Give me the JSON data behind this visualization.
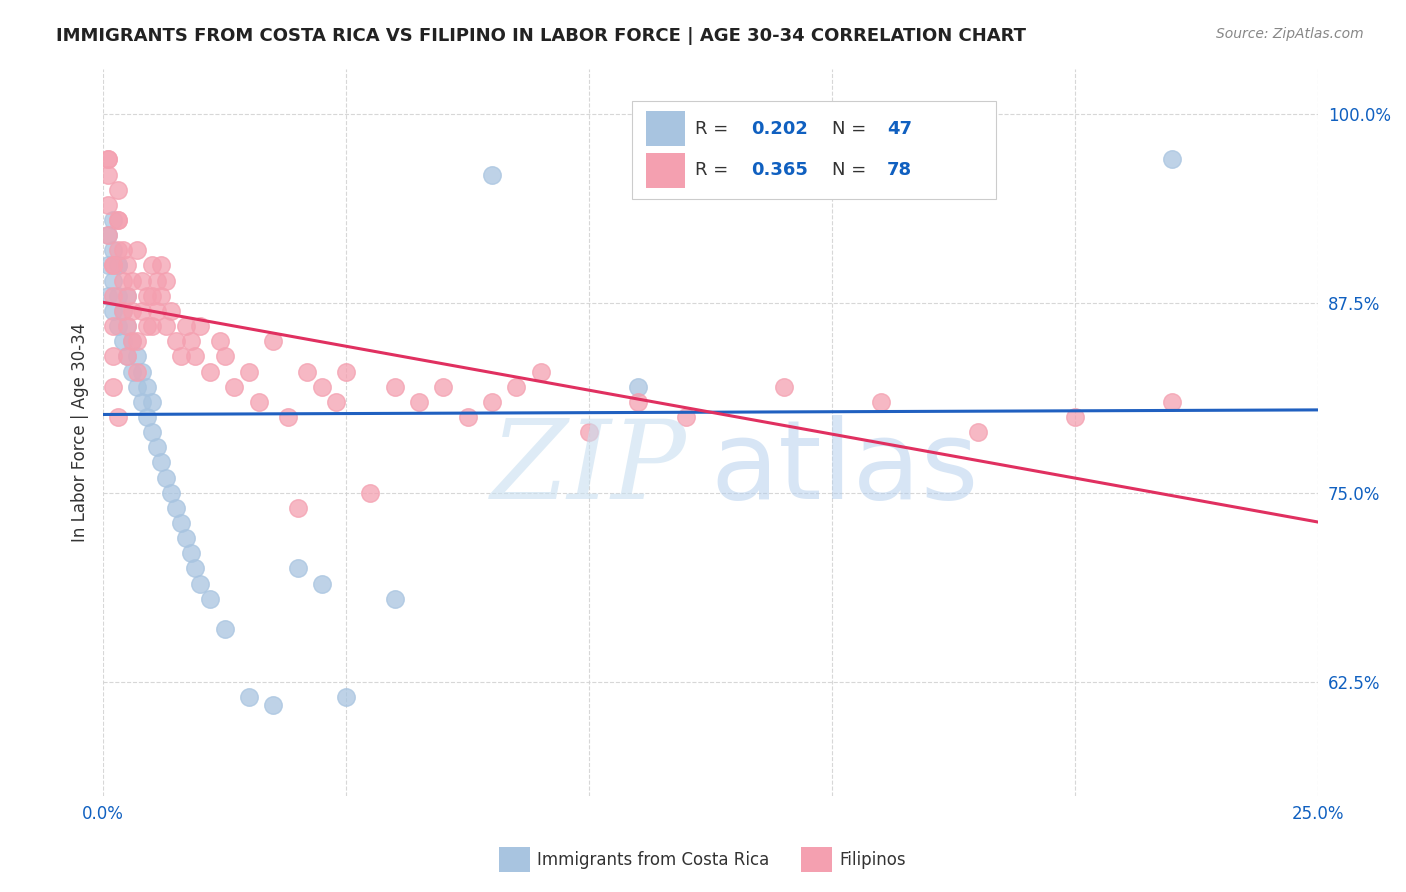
{
  "title": "IMMIGRANTS FROM COSTA RICA VS FILIPINO IN LABOR FORCE | AGE 30-34 CORRELATION CHART",
  "source": "Source: ZipAtlas.com",
  "ylabel": "In Labor Force | Age 30-34",
  "xlim": [
    0.0,
    0.25
  ],
  "ylim": [
    0.55,
    1.03
  ],
  "yticks": [
    0.625,
    0.75,
    0.875,
    1.0
  ],
  "yticklabels": [
    "62.5%",
    "75.0%",
    "87.5%",
    "100.0%"
  ],
  "costa_rica_R": 0.202,
  "costa_rica_N": 47,
  "filipino_R": 0.365,
  "filipino_N": 78,
  "blue_color": "#a8c4e0",
  "pink_color": "#f4a0b0",
  "blue_line_color": "#2060c0",
  "pink_line_color": "#e03060",
  "legend_R_color": "#1060c0",
  "costa_rica_x": [
    0.001,
    0.001,
    0.002,
    0.002,
    0.002,
    0.003,
    0.003,
    0.003,
    0.004,
    0.004,
    0.005,
    0.005,
    0.006,
    0.006,
    0.007,
    0.007,
    0.008,
    0.008,
    0.009,
    0.009,
    0.01,
    0.01,
    0.011,
    0.012,
    0.013,
    0.014,
    0.015,
    0.016,
    0.017,
    0.018,
    0.019,
    0.02,
    0.022,
    0.025,
    0.03,
    0.035,
    0.04,
    0.045,
    0.05,
    0.06,
    0.08,
    0.11,
    0.22,
    0.001,
    0.002,
    0.003,
    0.005
  ],
  "costa_rica_y": [
    0.88,
    0.9,
    0.87,
    0.89,
    0.91,
    0.86,
    0.88,
    0.9,
    0.85,
    0.87,
    0.84,
    0.86,
    0.83,
    0.85,
    0.82,
    0.84,
    0.81,
    0.83,
    0.8,
    0.82,
    0.79,
    0.81,
    0.78,
    0.77,
    0.76,
    0.75,
    0.74,
    0.73,
    0.72,
    0.71,
    0.7,
    0.69,
    0.68,
    0.66,
    0.615,
    0.61,
    0.7,
    0.69,
    0.615,
    0.68,
    0.96,
    0.82,
    0.97,
    0.92,
    0.93,
    0.9,
    0.88
  ],
  "filipino_x": [
    0.001,
    0.001,
    0.001,
    0.001,
    0.002,
    0.002,
    0.002,
    0.002,
    0.002,
    0.003,
    0.003,
    0.003,
    0.003,
    0.004,
    0.004,
    0.004,
    0.005,
    0.005,
    0.005,
    0.005,
    0.006,
    0.006,
    0.006,
    0.007,
    0.007,
    0.007,
    0.008,
    0.008,
    0.009,
    0.009,
    0.01,
    0.01,
    0.01,
    0.011,
    0.011,
    0.012,
    0.012,
    0.013,
    0.013,
    0.014,
    0.015,
    0.016,
    0.017,
    0.018,
    0.019,
    0.02,
    0.022,
    0.024,
    0.025,
    0.027,
    0.03,
    0.032,
    0.035,
    0.038,
    0.04,
    0.042,
    0.045,
    0.048,
    0.05,
    0.055,
    0.06,
    0.065,
    0.07,
    0.075,
    0.08,
    0.085,
    0.09,
    0.1,
    0.11,
    0.12,
    0.14,
    0.16,
    0.18,
    0.2,
    0.22,
    0.001,
    0.002,
    0.003
  ],
  "filipino_y": [
    0.97,
    0.96,
    0.94,
    0.92,
    0.9,
    0.88,
    0.86,
    0.84,
    0.82,
    0.8,
    0.91,
    0.93,
    0.95,
    0.89,
    0.91,
    0.87,
    0.88,
    0.9,
    0.86,
    0.84,
    0.85,
    0.87,
    0.89,
    0.91,
    0.83,
    0.85,
    0.87,
    0.89,
    0.88,
    0.86,
    0.9,
    0.88,
    0.86,
    0.89,
    0.87,
    0.9,
    0.88,
    0.86,
    0.89,
    0.87,
    0.85,
    0.84,
    0.86,
    0.85,
    0.84,
    0.86,
    0.83,
    0.85,
    0.84,
    0.82,
    0.83,
    0.81,
    0.85,
    0.8,
    0.74,
    0.83,
    0.82,
    0.81,
    0.83,
    0.75,
    0.82,
    0.81,
    0.82,
    0.8,
    0.81,
    0.82,
    0.83,
    0.79,
    0.81,
    0.8,
    0.82,
    0.81,
    0.79,
    0.8,
    0.81,
    0.97,
    0.9,
    0.93
  ]
}
